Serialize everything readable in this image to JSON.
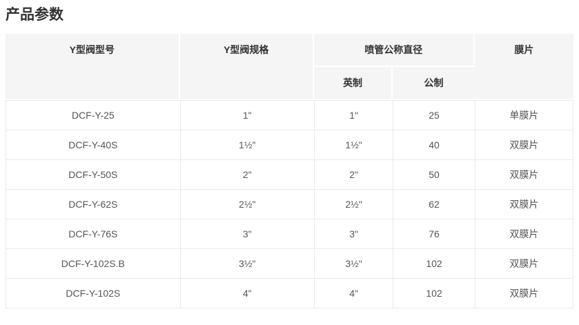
{
  "page": {
    "title": "产品参数"
  },
  "table": {
    "header": {
      "model": "Y型阀型号",
      "spec": "Y型阀规格",
      "nozzle_group": "喷管公称直径",
      "imperial": "英制",
      "metric": "公制",
      "diaphragm": "膜片"
    },
    "rows": [
      {
        "model": "DCF-Y-25",
        "spec": "1\"",
        "imperial": "1\"",
        "metric": "25",
        "diaphragm": "单膜片"
      },
      {
        "model": "DCF-Y-40S",
        "spec": "1½\"",
        "imperial": "1½\"",
        "metric": "40",
        "diaphragm": "双膜片"
      },
      {
        "model": "DCF-Y-50S",
        "spec": "2\"",
        "imperial": "2\"",
        "metric": "50",
        "diaphragm": "双膜片"
      },
      {
        "model": "DCF-Y-62S",
        "spec": "2½\"",
        "imperial": "2½\"",
        "metric": "62",
        "diaphragm": "双膜片"
      },
      {
        "model": "DCF-Y-76S",
        "spec": "3\"",
        "imperial": "3\"",
        "metric": "76",
        "diaphragm": "双膜片"
      },
      {
        "model": "DCF-Y-102S.B",
        "spec": "3½\"",
        "imperial": "3½\"",
        "metric": "102",
        "diaphragm": "双膜片"
      },
      {
        "model": "DCF-Y-102S",
        "spec": "4\"",
        "imperial": "4\"",
        "metric": "102",
        "diaphragm": "双膜片"
      }
    ],
    "colors": {
      "header_bg": "#f5f5f5",
      "header_text": "#333333",
      "body_text": "#555555",
      "grid_border": "#e9e9e9",
      "header_divider": "#ffffff"
    }
  }
}
